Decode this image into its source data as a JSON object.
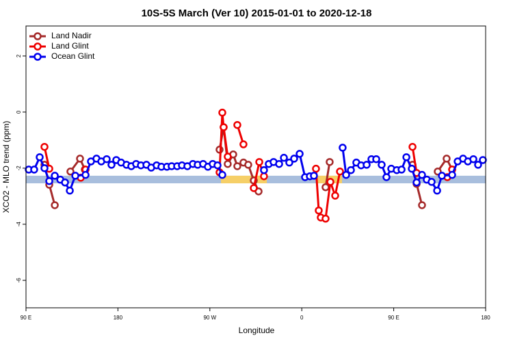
{
  "chart_data": {
    "type": "line",
    "title": "10S-5S March (Ver 10)   2015-01-01 to 2020-12-18",
    "x_label": "Longitude",
    "y_label": "XCO2 - MLO trend (ppm)",
    "xlim": [
      90,
      540
    ],
    "ylim": [
      -6.98,
      3.07
    ],
    "xticks": [
      {
        "value": 90,
        "label": "90 E"
      },
      180,
      {
        "value": 270,
        "label": "90 W"
      },
      {
        "value": 360,
        "label": "0"
      },
      {
        "value": 450,
        "label": "90 E"
      },
      {
        "value": 540,
        "label": "180"
      }
    ],
    "yticks": [
      2,
      0,
      -2,
      -4,
      -6
    ],
    "legend": "top-left",
    "band": {
      "lo": -2.54,
      "hi": -2.27,
      "color": "#a8bedd",
      "highlight_color": "#f6cf67",
      "highlights": [
        [
          280.9,
          325.8
        ],
        [
          374,
          399.4
        ]
      ]
    },
    "series": [
      {
        "name": "Land Nadir",
        "color": "#a52a2a",
        "x": [
          108.1,
          112.8,
          118.2,
          null,
          133.5,
          142.9,
          147.6,
          null,
          279.5,
          283.5,
          287.5,
          292.9,
          296.9,
          302.9,
          307.6,
          313.0,
          317.7,
          null,
          383.3,
          387.3,
          null,
          468.4,
          472.4,
          477.7,
          null,
          493.1,
          501.8,
          507.2
        ],
        "values": [
          -1.88,
          -2.59,
          -3.32,
          null,
          -2.12,
          -1.66,
          -2.05,
          null,
          -1.34,
          -0.54,
          -1.85,
          -1.51,
          -1.93,
          -1.8,
          -1.88,
          -2.44,
          -2.83,
          null,
          -2.68,
          -1.78,
          null,
          -1.88,
          -2.56,
          -3.32,
          null,
          -2.12,
          -1.66,
          -2.05
        ]
      },
      {
        "name": "Land Glint",
        "color": "#ee0000",
        "x": [
          108.1,
          112.8,
          null,
          143.6,
          148.3,
          null,
          279.5,
          282.2,
          283.5,
          287.5,
          null,
          296.9,
          302.9,
          null,
          313.0,
          318.4,
          323.0,
          null,
          373.9,
          376.6,
          378.6,
          383.3,
          388.0,
          392.7,
          397.4,
          null,
          468.4,
          472.4,
          null,
          502.5,
          507.2
        ],
        "values": [
          -1.24,
          -2.02,
          null,
          -2.34,
          -2.05,
          null,
          -2.15,
          -0.02,
          -0.54,
          -1.59,
          null,
          -0.46,
          -1.15,
          null,
          -2.71,
          -1.78,
          -2.29,
          null,
          -2.02,
          -3.51,
          -3.76,
          -3.8,
          -2.49,
          -2.98,
          -2.12,
          null,
          -1.24,
          -2.17,
          null,
          -2.32,
          -2.05
        ]
      },
      {
        "name": "Ocean Glint",
        "color": "#0000ee",
        "x": [
          92.7,
          98.0,
          103.4,
          108.1,
          112.8,
          118.2,
          123.6,
          128.2,
          132.9,
          138.3,
          148.3,
          153.6,
          159.0,
          163.7,
          169.0,
          173.7,
          178.4,
          183.1,
          188.4,
          193.1,
          197.8,
          202.5,
          207.9,
          212.6,
          217.9,
          222.6,
          228.0,
          232.6,
          238.0,
          242.7,
          248.0,
          253.4,
          258.1,
          263.4,
          268.1,
          272.8,
          277.5,
          282.2,
          null,
          323.0,
          327.7,
          332.4,
          337.8,
          342.5,
          347.8,
          352.5,
          357.9,
          363.2,
          367.9,
          371.9,
          null,
          400.0,
          403.4,
          408.1,
          413.4,
          418.1,
          423.5,
          428.2,
          432.9,
          438.2,
          442.9,
          447.6,
          453.0,
          457.7,
          462.4,
          467.7,
          472.4,
          477.7,
          482.4,
          487.1,
          492.5,
          497.2,
          507.2,
          512.6,
          517.9,
          522.6,
          528.0,
          532.6,
          537.3
        ],
        "values": [
          -2.05,
          -2.05,
          -1.61,
          -2.0,
          -2.46,
          -2.27,
          -2.41,
          -2.51,
          -2.8,
          -2.27,
          -2.24,
          -1.76,
          -1.66,
          -1.76,
          -1.68,
          -1.88,
          -1.71,
          -1.8,
          -1.88,
          -1.93,
          -1.85,
          -1.9,
          -1.88,
          -1.98,
          -1.9,
          -1.95,
          -1.95,
          -1.93,
          -1.93,
          -1.9,
          -1.93,
          -1.85,
          -1.88,
          -1.85,
          -1.95,
          -1.85,
          -1.9,
          -2.24,
          null,
          -2.07,
          -1.85,
          -1.78,
          -1.85,
          -1.63,
          -1.8,
          -1.66,
          -1.49,
          -2.32,
          -2.29,
          -2.27,
          null,
          -1.27,
          -2.24,
          -2.07,
          -1.8,
          -1.9,
          -1.88,
          -1.68,
          -1.68,
          -1.88,
          -2.32,
          -2.02,
          -2.07,
          -2.05,
          -1.61,
          -2.02,
          -2.51,
          -2.24,
          -2.41,
          -2.49,
          -2.8,
          -2.27,
          -2.24,
          -1.76,
          -1.66,
          -1.76,
          -1.68,
          -1.88,
          -1.71
        ]
      }
    ]
  }
}
